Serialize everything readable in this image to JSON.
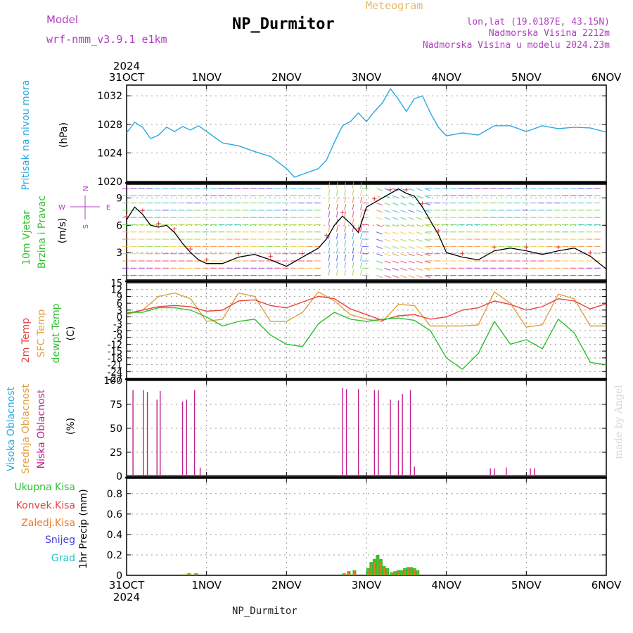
{
  "header": {
    "model_label": "Model",
    "model_name": "wrf-nmm_v3.9.1  e1km",
    "title": "NP_Durmitor",
    "subtitle": "Meteogram",
    "coords": "lon,lat (19.0187E, 43.15N)",
    "elevation": "Nadmorska Visina 2212m",
    "model_elevation": "Nadmorska Visina u modelu 2024.23m"
  },
  "footer": {
    "station": "NP_Durmitor",
    "credit": "made by Angel"
  },
  "colors": {
    "pressure": "#29a9e0",
    "temp2m": "#e8423f",
    "sfc": "#e0a040",
    "dewpt": "#2ec02e",
    "cloud_low": "#c0208a",
    "cloud_mid": "#e0a040",
    "cloud_high": "#29a9e0",
    "rain_total": "#2ec02e",
    "rain_conv": "#e8423f",
    "frozen": "#f07820",
    "snow": "#4040e0",
    "graupel": "#29c0c0",
    "label_violet": "#b040c0"
  },
  "chart_data": [
    {
      "type": "line",
      "panel": "pressure",
      "ylabel_main": "Pritisak na nivou mora",
      "ylabel_unit": "(hPa)",
      "xlabel_top_year": "2024",
      "xlabels": [
        "31OCT",
        "1NOV",
        "2NOV",
        "3NOV",
        "4NOV",
        "5NOV",
        "6NOV"
      ],
      "yticks": [
        "1020",
        "1024",
        "1028",
        "1032"
      ],
      "ylim": [
        1020,
        1033.5
      ],
      "x": [
        0,
        0.1,
        0.2,
        0.3,
        0.4,
        0.5,
        0.6,
        0.7,
        0.8,
        0.9,
        1.0,
        1.2,
        1.4,
        1.6,
        1.8,
        2.0,
        2.1,
        2.2,
        2.3,
        2.4,
        2.5,
        2.6,
        2.7,
        2.8,
        2.9,
        3.0,
        3.1,
        3.2,
        3.3,
        3.4,
        3.5,
        3.6,
        3.7,
        3.8,
        3.9,
        4.0,
        4.2,
        4.4,
        4.6,
        4.8,
        5.0,
        5.2,
        5.4,
        5.6,
        5.8,
        6.0
      ],
      "y": [
        1026.8,
        1028.3,
        1027.6,
        1026.0,
        1026.5,
        1027.6,
        1027.0,
        1027.7,
        1027.2,
        1027.8,
        1027.0,
        1025.4,
        1025.0,
        1024.2,
        1023.5,
        1021.8,
        1020.6,
        1021.0,
        1021.4,
        1021.8,
        1023.0,
        1025.5,
        1027.8,
        1028.4,
        1029.6,
        1028.4,
        1029.8,
        1031.0,
        1033.0,
        1031.5,
        1029.8,
        1031.6,
        1032.0,
        1029.6,
        1027.6,
        1026.4,
        1026.8,
        1026.5,
        1027.8,
        1027.8,
        1027.0,
        1027.8,
        1027.4,
        1027.6,
        1027.5,
        1026.9
      ]
    },
    {
      "type": "line",
      "panel": "wind",
      "ylabel_main": "10m Vjetar",
      "ylabel_sub": "Brzina i Pravac",
      "ylabel_unit": "(m/s)",
      "compass": {
        "w": "W",
        "e": "E",
        "s": "S",
        "n": "N"
      },
      "yticks": [
        "3",
        "6",
        "9"
      ],
      "ylim": [
        0,
        10.5
      ],
      "x": [
        0,
        0.1,
        0.2,
        0.3,
        0.4,
        0.5,
        0.6,
        0.7,
        0.8,
        0.9,
        1.0,
        1.2,
        1.4,
        1.6,
        1.8,
        2.0,
        2.2,
        2.4,
        2.5,
        2.6,
        2.7,
        2.8,
        2.9,
        3.0,
        3.1,
        3.2,
        3.3,
        3.4,
        3.5,
        3.6,
        3.7,
        3.8,
        3.9,
        4.0,
        4.2,
        4.4,
        4.6,
        4.8,
        5.0,
        5.2,
        5.4,
        5.6,
        5.8,
        6.0
      ],
      "speed": [
        6.6,
        8.0,
        7.2,
        6.0,
        5.8,
        6.0,
        5.2,
        4.0,
        3.0,
        2.2,
        1.8,
        1.8,
        2.5,
        2.8,
        2.2,
        1.5,
        2.5,
        3.5,
        4.5,
        6.0,
        7.0,
        6.2,
        5.2,
        8.0,
        8.5,
        9.0,
        9.5,
        10.0,
        9.5,
        9.2,
        8.0,
        6.5,
        5.0,
        3.0,
        2.5,
        2.2,
        3.2,
        3.5,
        3.2,
        2.8,
        3.2,
        3.5,
        2.6,
        1.2
      ]
    },
    {
      "type": "line",
      "panel": "temperature",
      "series_labels": [
        "2m Temp",
        "SFC Temp",
        "dewpt Temp"
      ],
      "ylabel_unit": "(C)",
      "yticks": [
        "15",
        "12",
        "9",
        "6",
        "3",
        "0",
        "-3",
        "-6",
        "-9",
        "-12",
        "-15",
        "-18",
        "-21",
        "-24",
        "-27"
      ],
      "ylim": [
        -27,
        15
      ],
      "x": [
        0,
        0.2,
        0.4,
        0.6,
        0.8,
        1.0,
        1.2,
        1.4,
        1.6,
        1.8,
        2.0,
        2.2,
        2.4,
        2.6,
        2.8,
        3.0,
        3.2,
        3.4,
        3.6,
        3.8,
        4.0,
        4.2,
        4.4,
        4.6,
        4.8,
        5.0,
        5.2,
        5.4,
        5.6,
        5.8,
        6.0
      ],
      "temp2m": [
        1.5,
        3.0,
        4.5,
        5.0,
        4.5,
        2.5,
        3.0,
        7.0,
        7.5,
        5.0,
        4.0,
        6.5,
        9.0,
        8.0,
        3.5,
        1.0,
        -1.5,
        0.5,
        1.0,
        -1.0,
        0.0,
        3.0,
        4.0,
        7.0,
        5.5,
        3.0,
        4.5,
        8.0,
        7.0,
        3.5,
        5.8
      ],
      "sfc": [
        1.0,
        3.0,
        9.0,
        10.5,
        8.0,
        -2.0,
        -1.0,
        10.5,
        9.0,
        -2.0,
        -2.0,
        2.0,
        11.0,
        7.0,
        1.0,
        -1.0,
        -2.0,
        5.5,
        5.0,
        -4.0,
        -4.0,
        -4.0,
        -3.5,
        11.0,
        6.0,
        -4.5,
        -3.5,
        10.0,
        8.0,
        -4.0,
        -4.0
      ],
      "dewpt": [
        2.0,
        2.0,
        4.0,
        4.0,
        3.0,
        0.0,
        -4.0,
        -2.0,
        -1.0,
        -8.0,
        -12.0,
        -13.0,
        -3.0,
        2.0,
        -1.0,
        -2.0,
        -1.0,
        -0.5,
        -1.5,
        -6.0,
        -18.0,
        -23.0,
        -16.0,
        -2.0,
        -12.0,
        -10.0,
        -14.0,
        -1.0,
        -7.0,
        -20.0,
        -21.0
      ]
    },
    {
      "type": "bar",
      "panel": "clouds",
      "series_labels": [
        "Visoka Oblacnost",
        "Srednja Oblacnost",
        "Niska Oblacnost"
      ],
      "ylabel_unit": "(%)",
      "yticks": [
        "0",
        "25",
        "50",
        "75",
        "100"
      ],
      "ylim": [
        0,
        100
      ],
      "x": [
        0.08,
        0.21,
        0.26,
        0.38,
        0.42,
        0.7,
        0.75,
        0.85,
        0.92,
        2.7,
        2.75,
        2.9,
        3.1,
        3.15,
        3.3,
        3.4,
        3.45,
        3.55,
        3.6,
        4.55,
        4.6,
        4.75,
        5.05,
        5.1
      ],
      "values": [
        90,
        90,
        88,
        80,
        89,
        78,
        80,
        90,
        9,
        92,
        91,
        91,
        90,
        90,
        80,
        79,
        86,
        90,
        10,
        8,
        8,
        9,
        8,
        8
      ]
    },
    {
      "type": "bar",
      "panel": "precip",
      "series_labels": [
        "Ukupna Kisa",
        "Konvek.Kisa",
        "Zaledj.Kisa",
        "Snijeg",
        "Grad"
      ],
      "ylabel_unit": "1hr Precip (mm)",
      "yticks": [
        "0",
        "0.2",
        "0.4",
        "0.6",
        "0.8"
      ],
      "ylim": [
        0,
        0.95
      ],
      "x": [
        0.72,
        0.78,
        0.87,
        2.72,
        2.78,
        2.85,
        3.02,
        3.06,
        3.1,
        3.14,
        3.18,
        3.22,
        3.26,
        3.32,
        3.36,
        3.4,
        3.44,
        3.48,
        3.52,
        3.56,
        3.6,
        3.64
      ],
      "values": [
        0.01,
        0.02,
        0.02,
        0.02,
        0.04,
        0.05,
        0.07,
        0.13,
        0.16,
        0.2,
        0.16,
        0.09,
        0.07,
        0.03,
        0.04,
        0.05,
        0.05,
        0.07,
        0.08,
        0.08,
        0.07,
        0.05
      ]
    }
  ]
}
